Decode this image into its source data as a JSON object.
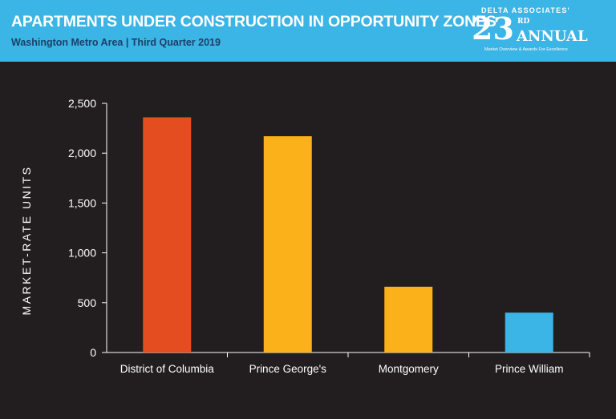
{
  "header": {
    "title": "APARTMENTS UNDER CONSTRUCTION IN OPPORTUNITY ZONES",
    "subtitle": "Washington Metro Area | Third Quarter 2019",
    "background_color": "#3bb4e6"
  },
  "badge": {
    "org": "DELTA ASSOCIATES'",
    "number": "23",
    "suffix": "RD",
    "word": "ANNUAL",
    "tagline": "Market Overview & Awards For Excellence"
  },
  "chart_data": {
    "type": "bar",
    "title": "APARTMENTS UNDER CONSTRUCTION IN OPPORTUNITY ZONES",
    "subtitle": "Washington Metro Area | Third Quarter 2019",
    "categories": [
      "District of Columbia",
      "Prince George's",
      "Montgomery",
      "Prince William"
    ],
    "values": [
      2360,
      2170,
      660,
      400
    ],
    "colors": [
      "#e44d1f",
      "#fbb21a",
      "#fbb21a",
      "#3bb4e6"
    ],
    "ylabel": "MARKET-RATE UNITS",
    "xlabel": "",
    "ylim": [
      0,
      2500
    ],
    "yticks": [
      0,
      500,
      1000,
      1500,
      2000,
      2500
    ],
    "ytick_labels": [
      "0",
      "500",
      "1,000",
      "1,500",
      "2,000",
      "2,500"
    ],
    "grid": false,
    "legend": "none"
  }
}
